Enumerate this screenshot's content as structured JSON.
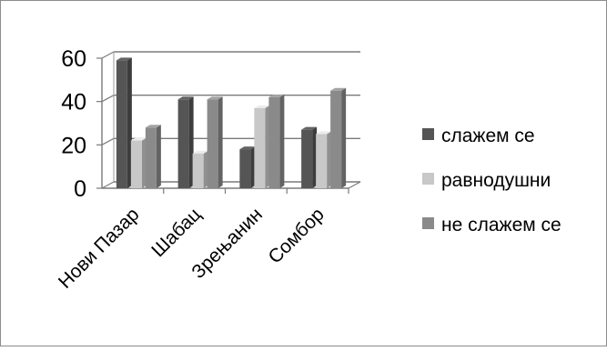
{
  "chart_data": {
    "type": "bar",
    "style": "3d-clustered-column",
    "categories": [
      "Нови Пазар",
      "Шабац",
      "Зрењанин",
      "Сомбор"
    ],
    "series": [
      {
        "name": "слажем се",
        "values": [
          59,
          41,
          18,
          27
        ],
        "color": "#555555"
      },
      {
        "name": "равнодушни",
        "values": [
          22,
          16,
          37,
          25
        ],
        "color": "#c8c8c8"
      },
      {
        "name": "не слажем се",
        "values": [
          28,
          41,
          42,
          45
        ],
        "color": "#8a8a8a"
      }
    ],
    "y_ticks": [
      "0",
      "20",
      "40",
      "60"
    ],
    "ylim": [
      0,
      60
    ],
    "grid": true,
    "legend_position": "right"
  }
}
